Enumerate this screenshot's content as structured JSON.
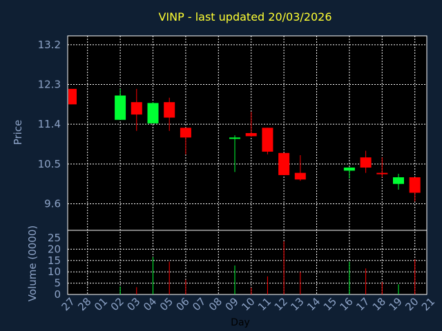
{
  "chart_data": {
    "type": "candlestick",
    "title": "VINP - last updated 20/03/2026",
    "xlabel": "Day",
    "ylabel_price": "Price",
    "ylabel_volume": "Volume (0000)",
    "x_ticks": [
      "27",
      "28",
      "01",
      "02",
      "03",
      "04",
      "05",
      "06",
      "07",
      "08",
      "09",
      "10",
      "11",
      "12",
      "13",
      "14",
      "15",
      "16",
      "17",
      "18",
      "19",
      "20",
      "21"
    ],
    "price_ticks": [
      "13.2",
      "12.3",
      "11.4",
      "10.5",
      "9.6"
    ],
    "price_tick_values": [
      13.2,
      12.3,
      11.4,
      10.5,
      9.6
    ],
    "volume_ticks": [
      "25",
      "20",
      "15",
      "10",
      "5",
      "0"
    ],
    "volume_tick_values": [
      25,
      20,
      15,
      10,
      5,
      0
    ],
    "ylim_price": [
      9.0,
      13.4
    ],
    "ylim_volume": [
      0,
      25
    ],
    "grid": true,
    "colors": {
      "up": "#00ff33",
      "down": "#ff0000",
      "background": "#0f1f33",
      "panel": "#000000",
      "grid": "#ffffff",
      "axis_text": "#8ea4c8",
      "title": "#ffff33"
    },
    "candles": [
      {
        "day": "27",
        "open": 12.2,
        "high": 12.2,
        "low": 11.85,
        "close": 11.85,
        "volume": 0
      },
      {
        "day": "02",
        "open": 11.5,
        "high": 12.2,
        "low": 11.5,
        "close": 12.05,
        "volume": 3.5
      },
      {
        "day": "03",
        "open": 11.9,
        "high": 12.2,
        "low": 11.25,
        "close": 11.62,
        "volume": 3.2
      },
      {
        "day": "04",
        "open": 11.42,
        "high": 11.9,
        "low": 11.42,
        "close": 11.88,
        "volume": 16.5
      },
      {
        "day": "05",
        "open": 11.9,
        "high": 12.0,
        "low": 11.25,
        "close": 11.55,
        "volume": 14.5
      },
      {
        "day": "06",
        "open": 11.32,
        "high": 11.32,
        "low": 10.72,
        "close": 11.1,
        "volume": 6.5
      },
      {
        "day": "09",
        "open": 11.08,
        "high": 11.15,
        "low": 10.32,
        "close": 11.1,
        "volume": 12.8
      },
      {
        "day": "10",
        "open": 11.2,
        "high": 11.68,
        "low": 11.12,
        "close": 11.13,
        "volume": 3.0
      },
      {
        "day": "11",
        "open": 11.32,
        "high": 11.32,
        "low": 10.72,
        "close": 10.78,
        "volume": 8.0
      },
      {
        "day": "12",
        "open": 10.75,
        "high": 10.75,
        "low": 10.25,
        "close": 10.25,
        "volume": 23.5
      },
      {
        "day": "13",
        "open": 10.3,
        "high": 10.7,
        "low": 10.12,
        "close": 10.15,
        "volume": 10.0
      },
      {
        "day": "16",
        "open": 10.35,
        "high": 10.43,
        "low": 10.17,
        "close": 10.42,
        "volume": 14.5
      },
      {
        "day": "17",
        "open": 10.65,
        "high": 10.8,
        "low": 10.3,
        "close": 10.42,
        "volume": 11.5
      },
      {
        "day": "18",
        "open": 10.3,
        "high": 10.65,
        "low": 10.2,
        "close": 10.28,
        "volume": 5.5
      },
      {
        "day": "19",
        "open": 10.05,
        "high": 10.28,
        "low": 9.92,
        "close": 10.2,
        "volume": 4.5
      },
      {
        "day": "20",
        "open": 10.2,
        "high": 10.2,
        "low": 9.65,
        "close": 9.85,
        "volume": 15.5
      }
    ]
  }
}
